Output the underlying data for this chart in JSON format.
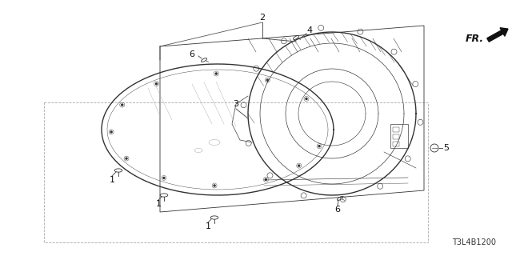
{
  "bg_color": "#ffffff",
  "diagram_code": "T3L4B1200",
  "fr_label": "FR.",
  "line_color": "#333333",
  "gray_color": "#777777",
  "font_size_label": 8,
  "font_size_fr": 9,
  "font_size_code": 7
}
